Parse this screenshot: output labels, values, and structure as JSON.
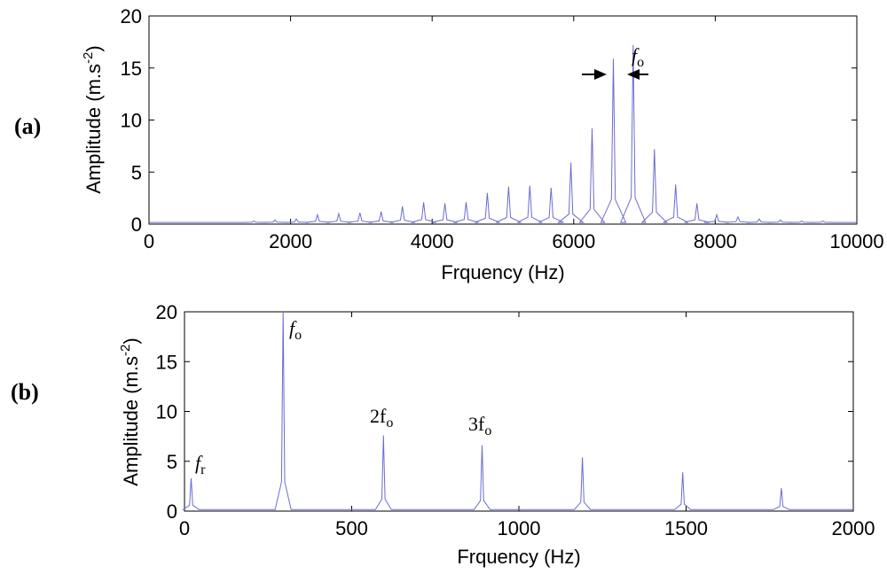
{
  "chart_data": [
    {
      "type": "line",
      "panel_label": "(a)",
      "xlabel": "Frquency (Hz)",
      "ylabel": "Amplitude (m.s",
      "ylabel_sup": "-2",
      "ylabel_close": ")",
      "xlim": [
        0,
        10000
      ],
      "ylim": [
        0,
        20
      ],
      "xticks": [
        "0",
        "2000",
        "4000",
        "6000",
        "8000",
        "10000"
      ],
      "yticks": [
        "0",
        "5",
        "10",
        "15",
        "20"
      ],
      "line_color": "#6b6bd6",
      "annotation": {
        "text": "f",
        "sub": "o"
      },
      "peaks": [
        [
          1480,
          0.3
        ],
        [
          1780,
          0.4
        ],
        [
          2080,
          0.5
        ],
        [
          2380,
          0.9
        ],
        [
          2680,
          1.0
        ],
        [
          2980,
          1.1
        ],
        [
          3280,
          1.2
        ],
        [
          3580,
          1.7
        ],
        [
          3880,
          2.1
        ],
        [
          4180,
          2.0
        ],
        [
          4480,
          2.1
        ],
        [
          4780,
          3.0
        ],
        [
          5080,
          3.6
        ],
        [
          5380,
          3.7
        ],
        [
          5680,
          3.5
        ],
        [
          5960,
          5.9
        ],
        [
          6260,
          9.2
        ],
        [
          6560,
          15.9
        ],
        [
          6840,
          17.2
        ],
        [
          7140,
          7.2
        ],
        [
          7440,
          3.8
        ],
        [
          7740,
          2.0
        ],
        [
          8020,
          0.9
        ],
        [
          8320,
          0.7
        ],
        [
          8620,
          0.5
        ],
        [
          8920,
          0.4
        ],
        [
          9220,
          0.3
        ],
        [
          9520,
          0.3
        ]
      ]
    },
    {
      "type": "line",
      "panel_label": "(b)",
      "xlabel": "Frquency (Hz)",
      "ylabel": "Amplitude (m.s",
      "ylabel_sup": "-2",
      "ylabel_close": ")",
      "xlim": [
        0,
        2000
      ],
      "ylim": [
        0,
        20
      ],
      "xticks": [
        "0",
        "500",
        "1000",
        "1500",
        "2000"
      ],
      "yticks": [
        "0",
        "5",
        "10",
        "15",
        "20"
      ],
      "line_color": "#6b6bd6",
      "annotations": [
        {
          "text": "f",
          "sub": "r"
        },
        {
          "text": "f",
          "sub": "o"
        },
        {
          "text": "2f",
          "sub": "o"
        },
        {
          "text": "3f",
          "sub": "o"
        }
      ],
      "peaks": [
        [
          20,
          3.3
        ],
        [
          295,
          20.0
        ],
        [
          595,
          7.6
        ],
        [
          890,
          6.6
        ],
        [
          1190,
          5.4
        ],
        [
          1490,
          3.9
        ],
        [
          1785,
          2.3
        ]
      ]
    }
  ]
}
